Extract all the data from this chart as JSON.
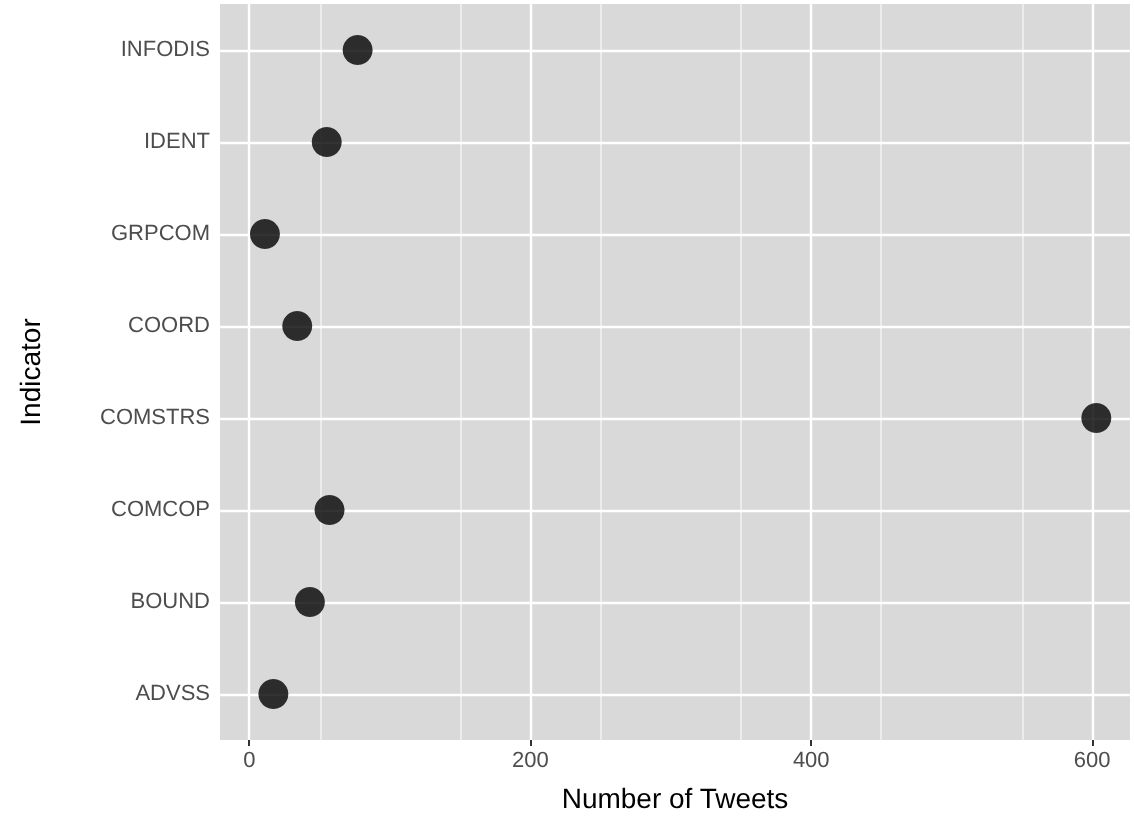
{
  "chart_data": {
    "type": "scatter",
    "orientation": "horizontal",
    "xlabel": "Number of Tweets",
    "ylabel": "Indicator",
    "categories": [
      "INFODIS",
      "IDENT",
      "GRPCOM",
      "COORD",
      "COMSTRS",
      "COMCOP",
      "BOUND",
      "ADVSS"
    ],
    "values": [
      77,
      55,
      11,
      34,
      603,
      57,
      43,
      17
    ],
    "color": "#000000",
    "marker": "circle",
    "grid": true,
    "xlim": [
      -21,
      627
    ],
    "xticks": [
      0,
      200,
      400,
      600
    ]
  }
}
